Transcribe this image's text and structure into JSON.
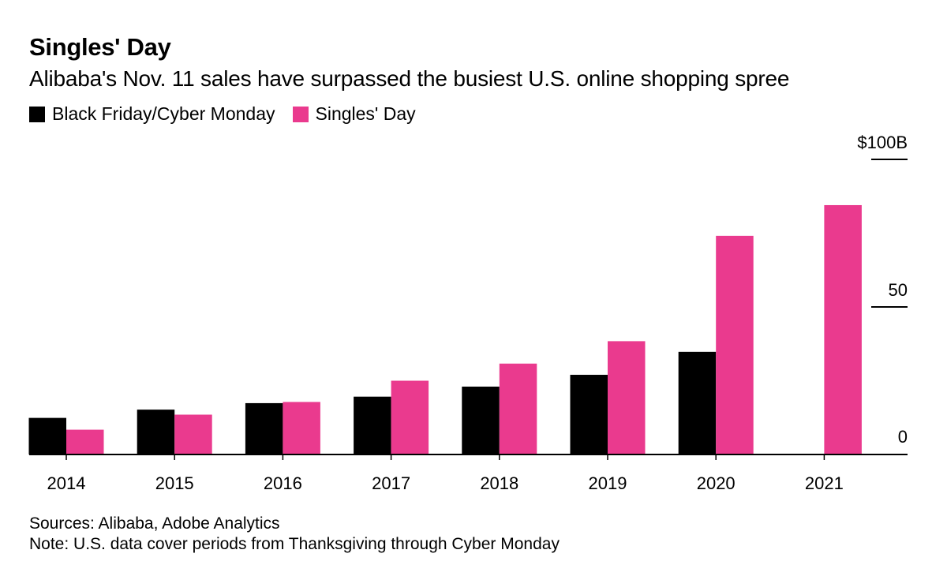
{
  "title": "Singles' Day",
  "subtitle": "Alibaba's Nov. 11 sales have surpassed the busiest U.S. online shopping spree",
  "legend": [
    {
      "label": "Black Friday/Cyber Monday",
      "color": "#000000"
    },
    {
      "label": "Singles' Day",
      "color": "#ea3a8e"
    }
  ],
  "footer": {
    "sources": "Sources: Alibaba, Adobe Analytics",
    "note": "Note: U.S. data cover periods from Thanksgiving through Cyber Monday"
  },
  "chart_data": {
    "type": "bar",
    "categories": [
      "2014",
      "2015",
      "2016",
      "2017",
      "2018",
      "2019",
      "2020",
      "2021"
    ],
    "series": [
      {
        "name": "Black Friday/Cyber Monday",
        "color": "#000000",
        "values": [
          12.4,
          15.2,
          17.4,
          19.6,
          23.0,
          27.0,
          34.8,
          null
        ]
      },
      {
        "name": "Singles' Day",
        "color": "#ea3a8e",
        "values": [
          8.4,
          13.5,
          17.8,
          25.0,
          30.8,
          38.4,
          74.1,
          84.5
        ]
      }
    ],
    "ylim": [
      0,
      100
    ],
    "yticks": [
      {
        "value": 0,
        "label": "0"
      },
      {
        "value": 50,
        "label": "50"
      },
      {
        "value": 100,
        "label": "$100B"
      }
    ],
    "xlabel": "",
    "ylabel": "",
    "grid": false,
    "legend_position": "top-left"
  }
}
